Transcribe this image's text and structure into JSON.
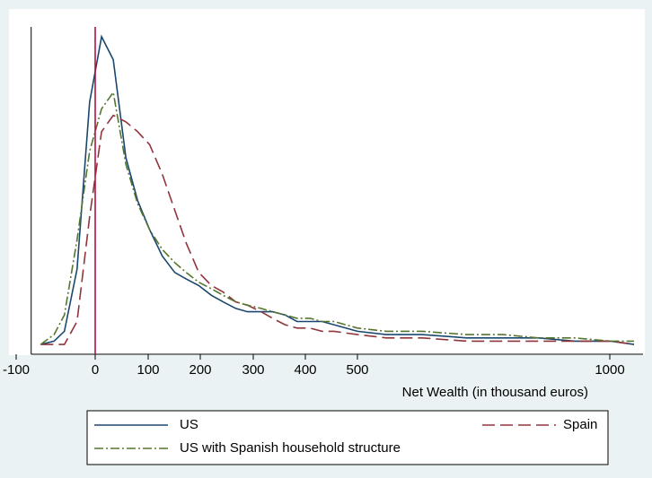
{
  "chart_data": {
    "type": "line",
    "xlabel": "Net Wealth (in thousand euros)",
    "xlim": [
      -81,
      1066
    ],
    "ylim": [
      0,
      1
    ],
    "xticks": [
      -100,
      0,
      100,
      200,
      300,
      400,
      500,
      1000
    ],
    "xline": 0,
    "xline_color": "#b0123f",
    "x": [
      -69,
      -52,
      -39,
      -23,
      -7,
      12,
      34,
      58,
      80,
      103,
      127,
      151,
      173,
      197,
      221,
      243,
      267,
      289,
      315,
      337,
      361,
      384,
      409,
      432,
      455,
      500,
      557,
      628,
      717,
      788,
      859,
      931,
      1002,
      1048
    ],
    "series": [
      {
        "name": "US",
        "color": "#1a476f",
        "dash": "solid",
        "values": [
          0.03,
          0.04,
          0.07,
          0.26,
          0.77,
          0.97,
          0.9,
          0.6,
          0.47,
          0.38,
          0.3,
          0.25,
          0.23,
          0.21,
          0.18,
          0.16,
          0.14,
          0.13,
          0.13,
          0.13,
          0.12,
          0.1,
          0.1,
          0.1,
          0.09,
          0.07,
          0.06,
          0.06,
          0.05,
          0.05,
          0.05,
          0.04,
          0.04,
          0.03
        ]
      },
      {
        "name": "Spain",
        "color": "#90353b",
        "dash": "long",
        "values": [
          0.03,
          0.03,
          0.03,
          0.1,
          0.42,
          0.68,
          0.73,
          0.71,
          0.68,
          0.64,
          0.55,
          0.44,
          0.34,
          0.25,
          0.21,
          0.19,
          0.16,
          0.15,
          0.13,
          0.11,
          0.09,
          0.08,
          0.08,
          0.07,
          0.07,
          0.06,
          0.05,
          0.05,
          0.04,
          0.04,
          0.04,
          0.04,
          0.04,
          0.03
        ]
      },
      {
        "name": "US with Spanish household structure",
        "color": "#55752f",
        "dash": "dashdot",
        "values": [
          0.03,
          0.06,
          0.12,
          0.35,
          0.62,
          0.75,
          0.8,
          0.58,
          0.46,
          0.38,
          0.32,
          0.28,
          0.25,
          0.22,
          0.2,
          0.18,
          0.16,
          0.15,
          0.14,
          0.13,
          0.12,
          0.11,
          0.11,
          0.1,
          0.1,
          0.08,
          0.07,
          0.07,
          0.06,
          0.06,
          0.05,
          0.05,
          0.04,
          0.04
        ]
      }
    ]
  }
}
